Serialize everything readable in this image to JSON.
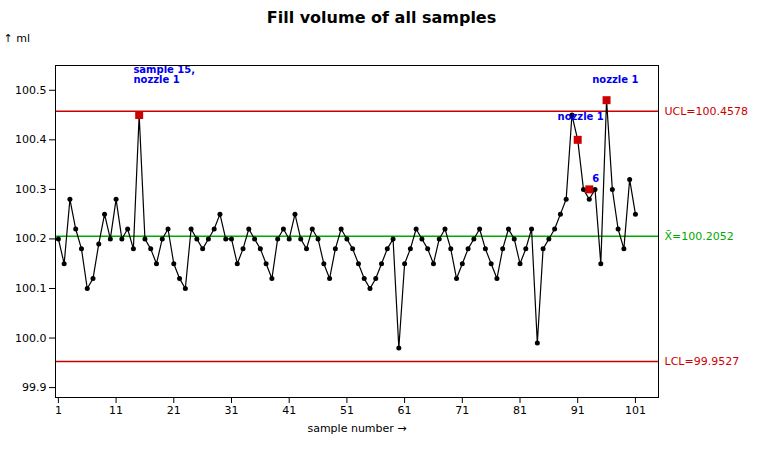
{
  "chart_data": {
    "type": "line",
    "title": "Fill volume of all samples",
    "xlabel": "sample number",
    "ylabel": "ml",
    "x": [
      1,
      2,
      3,
      4,
      5,
      6,
      7,
      8,
      9,
      10,
      11,
      12,
      13,
      14,
      15,
      16,
      17,
      18,
      19,
      20,
      21,
      22,
      23,
      24,
      25,
      26,
      27,
      28,
      29,
      30,
      31,
      32,
      33,
      34,
      35,
      36,
      37,
      38,
      39,
      40,
      41,
      42,
      43,
      44,
      45,
      46,
      47,
      48,
      49,
      50,
      51,
      52,
      53,
      54,
      55,
      56,
      57,
      58,
      59,
      60,
      61,
      62,
      63,
      64,
      65,
      66,
      67,
      68,
      69,
      70,
      71,
      72,
      73,
      74,
      75,
      76,
      77,
      78,
      79,
      80,
      81,
      82,
      83,
      84,
      85,
      86,
      87,
      88,
      89,
      90,
      91,
      92,
      93,
      94,
      95,
      96,
      97,
      98,
      99,
      100,
      101
    ],
    "values": [
      100.2,
      100.15,
      100.28,
      100.22,
      100.18,
      100.1,
      100.12,
      100.19,
      100.25,
      100.2,
      100.28,
      100.2,
      100.22,
      100.18,
      100.45,
      100.2,
      100.18,
      100.15,
      100.2,
      100.22,
      100.15,
      100.12,
      100.1,
      100.22,
      100.2,
      100.18,
      100.2,
      100.22,
      100.25,
      100.2,
      100.2,
      100.15,
      100.18,
      100.22,
      100.2,
      100.18,
      100.15,
      100.12,
      100.2,
      100.22,
      100.2,
      100.25,
      100.2,
      100.18,
      100.22,
      100.2,
      100.15,
      100.12,
      100.18,
      100.22,
      100.2,
      100.18,
      100.15,
      100.12,
      100.1,
      100.12,
      100.15,
      100.18,
      100.2,
      99.98,
      100.15,
      100.18,
      100.22,
      100.2,
      100.18,
      100.15,
      100.2,
      100.22,
      100.18,
      100.12,
      100.15,
      100.18,
      100.2,
      100.22,
      100.18,
      100.15,
      100.12,
      100.18,
      100.22,
      100.2,
      100.15,
      100.18,
      100.22,
      99.99,
      100.18,
      100.2,
      100.22,
      100.25,
      100.28,
      100.45,
      100.4,
      100.3,
      100.28,
      100.3,
      100.15,
      100.48,
      100.3,
      100.22,
      100.18,
      100.32,
      100.25
    ],
    "color": "#000000",
    "marker": "circle",
    "xlim": [
      0.5,
      105
    ],
    "xticks": [
      1,
      11,
      21,
      31,
      41,
      51,
      61,
      71,
      81,
      91,
      101
    ],
    "ylim": [
      99.88,
      100.55
    ],
    "yticks": [
      99.9,
      {
        "value": 100,
        "label": "100.0"
      },
      100.1,
      100.2,
      100.3,
      100.4,
      100.5
    ],
    "grid": false,
    "reference_lines": [
      {
        "value": 100.4578,
        "label": "UCL=100.4578",
        "color": "#cc0000"
      },
      {
        "value": 100.2052,
        "label": "X̄=100.2052",
        "color": "#00aa00"
      },
      {
        "value": 99.9527,
        "label": "LCL=99.9527",
        "color": "#cc0000"
      }
    ],
    "highlight_points": {
      "x": [
        15,
        91,
        93,
        96
      ],
      "values": [
        100.45,
        100.4,
        100.3,
        100.48
      ],
      "color": "#cc0000",
      "marker": "square"
    },
    "annotations": [
      {
        "text": "sample 15,\nnozzle 1",
        "x": 14,
        "y": 100.515,
        "color": "#0000ee"
      },
      {
        "text": "nozzle 1",
        "x": 93.5,
        "y": 100.515,
        "color": "#0000ee"
      },
      {
        "text": "nozzle 1",
        "x": 87.5,
        "y": 100.44,
        "color": "#0000ee"
      },
      {
        "text": "6",
        "x": 93.5,
        "y": 100.315,
        "color": "#0000ee"
      }
    ]
  }
}
